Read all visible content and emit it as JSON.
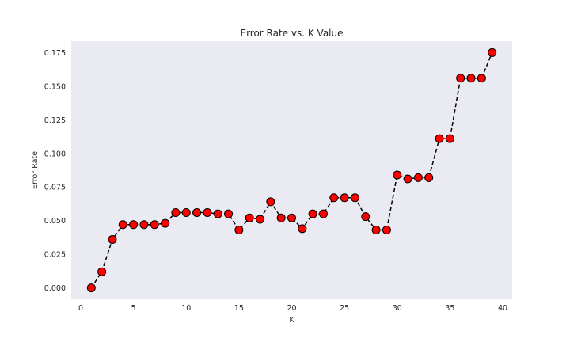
{
  "chart_data": {
    "type": "line",
    "title": "Error Rate vs. K Value",
    "xlabel": "K",
    "ylabel": "Error Rate",
    "xlim": [
      -0.9,
      40.9
    ],
    "ylim": [
      -0.0085,
      0.1835
    ],
    "xticks": [
      0,
      5,
      10,
      15,
      20,
      25,
      30,
      35,
      40
    ],
    "yticks": [
      0.0,
      0.025,
      0.05,
      0.075,
      0.1,
      0.125,
      0.15,
      0.175
    ],
    "ytick_labels": [
      "0.000",
      "0.025",
      "0.050",
      "0.075",
      "0.100",
      "0.125",
      "0.150",
      "0.175"
    ],
    "grid": false,
    "background": "#eaeaf2",
    "line_color": "#000000",
    "line_style": "dashed",
    "marker_color": "#ff0000",
    "marker_edge_color": "#000000",
    "series": [
      {
        "x": [
          1,
          2,
          3,
          4,
          5,
          6,
          7,
          8,
          9,
          10,
          11,
          12,
          13,
          14,
          15,
          16,
          17,
          18,
          19,
          20,
          21,
          22,
          23,
          24,
          25,
          26,
          27,
          28,
          29,
          30,
          31,
          32,
          33,
          34,
          35,
          36,
          37,
          38,
          39
        ],
        "values": [
          0.0,
          0.012,
          0.036,
          0.047,
          0.047,
          0.047,
          0.047,
          0.048,
          0.056,
          0.056,
          0.056,
          0.056,
          0.055,
          0.055,
          0.043,
          0.052,
          0.051,
          0.064,
          0.052,
          0.052,
          0.044,
          0.055,
          0.055,
          0.067,
          0.067,
          0.067,
          0.053,
          0.043,
          0.043,
          0.084,
          0.081,
          0.082,
          0.082,
          0.111,
          0.111,
          0.156,
          0.156,
          0.156,
          0.175
        ]
      }
    ]
  }
}
